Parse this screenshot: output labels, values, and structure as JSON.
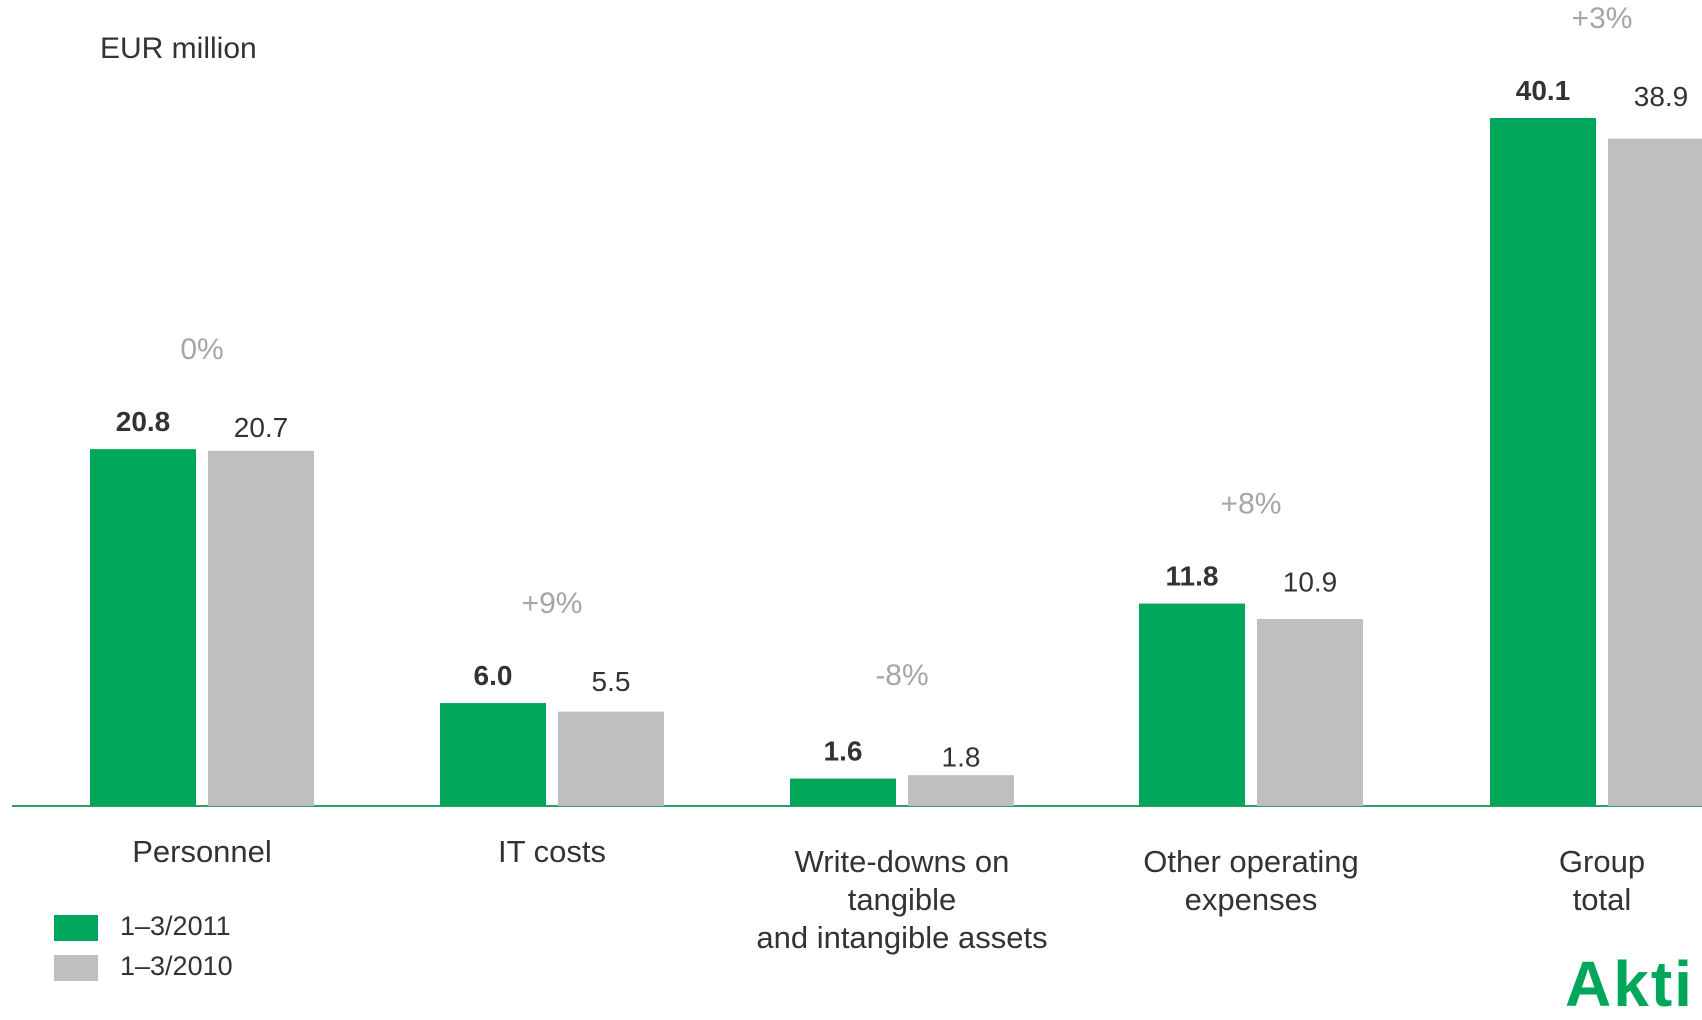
{
  "unit_label": "EUR million",
  "colors": {
    "current": "#00a65a",
    "previous": "#bfbfbf",
    "axis": "#2e9e66",
    "change": "#a6a6a6",
    "text": "#333333"
  },
  "logo_text": "Akti",
  "chart_data": {
    "type": "bar",
    "categories": [
      "Personnel",
      "IT costs",
      "Write-downs on tangible and intangible assets",
      "Other operating expenses",
      "Group total"
    ],
    "category_lines": [
      [
        "Personnel"
      ],
      [
        "IT costs"
      ],
      [
        "Write-downs on",
        "tangible",
        "and intangible assets"
      ],
      [
        "Other operating",
        "expenses"
      ],
      [
        "Group",
        "total"
      ]
    ],
    "series": [
      {
        "name": "1–3/2011",
        "values": [
          20.8,
          6.0,
          1.6,
          11.8,
          40.1
        ]
      },
      {
        "name": "1–3/2010",
        "values": [
          20.7,
          5.5,
          1.8,
          10.9,
          38.9
        ]
      }
    ],
    "value_labels": [
      [
        "20.8",
        "6.0",
        "1.6",
        "11.8",
        "40.1"
      ],
      [
        "20.7",
        "5.5",
        "1.8",
        "10.9",
        "38.9"
      ]
    ],
    "change_labels": [
      "0%",
      "+9%",
      "-8%",
      "+8%",
      "+3%"
    ],
    "ylabel": "EUR million",
    "ylim": [
      0,
      42
    ],
    "grid": false,
    "legend_position": "bottom-left"
  }
}
